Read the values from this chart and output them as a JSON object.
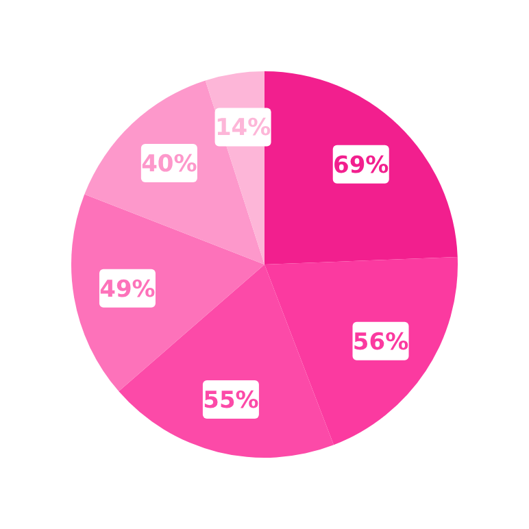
{
  "chart_data": {
    "type": "pie",
    "categories": [
      null,
      null,
      null,
      null,
      null,
      null
    ],
    "values": [
      69,
      56,
      55,
      49,
      40,
      14
    ],
    "colors": [
      "#f21f8e",
      "#fb3aa0",
      "#fc4aa8",
      "#fd72ba",
      "#fd98cb",
      "#fdb6d8"
    ],
    "value_labels": [
      "69%",
      "56%",
      "55%",
      "49%",
      "40%",
      "14%"
    ]
  }
}
